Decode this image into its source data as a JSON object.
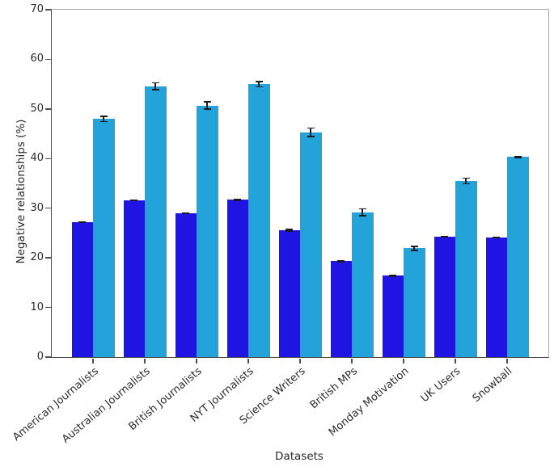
{
  "figure": {
    "background": "#ffffff"
  },
  "chart_data": {
    "type": "bar",
    "title": "",
    "xlabel": "Datasets",
    "ylabel": "Negative relationships (%)",
    "ylim": [
      0,
      70
    ],
    "yticks": [
      0,
      10,
      20,
      30,
      40,
      50,
      60,
      70
    ],
    "grid": false,
    "legend": "none",
    "categories": [
      "American Journalists",
      "Australian Journalists",
      "British Journalists",
      "NYT Journalists",
      "Science Writers",
      "British MPs",
      "Monday Motivation",
      "UK Users",
      "Snowball"
    ],
    "series": [
      {
        "name": "dark-blue-bars",
        "color": "#2014e2",
        "values": [
          27.2,
          31.6,
          29.0,
          31.7,
          25.6,
          19.3,
          16.4,
          24.3,
          24.1
        ],
        "errors": [
          0.2,
          0.2,
          0.2,
          0.2,
          0.3,
          0.2,
          0.2,
          0.2,
          0.2
        ]
      },
      {
        "name": "light-blue-bars",
        "color": "#24a3da",
        "values": [
          48.0,
          54.6,
          50.7,
          55.0,
          45.3,
          29.2,
          21.9,
          35.5,
          40.3
        ],
        "errors": [
          0.7,
          0.8,
          0.9,
          0.7,
          1.0,
          0.8,
          0.6,
          0.7,
          0.2
        ]
      }
    ],
    "error_bar_color": "#1c1c1c",
    "axis_colors": {
      "spine_dark": "#4f4f4f",
      "spine_light": "#a8a8a8",
      "tick_mark": "#4f4f4f",
      "text": "#2b2b2b"
    }
  }
}
